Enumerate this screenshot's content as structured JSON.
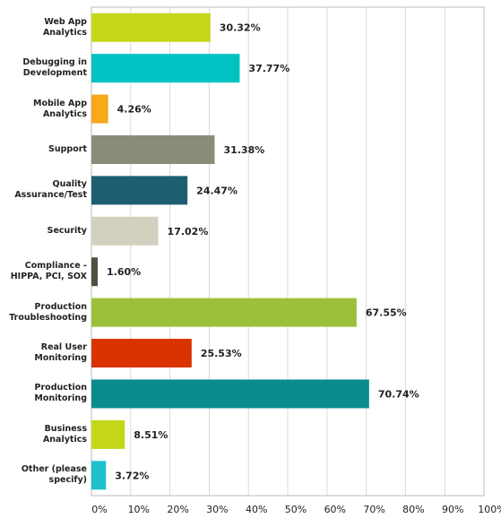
{
  "chart_data": {
    "type": "bar",
    "orientation": "horizontal",
    "categories": [
      "Web App Analytics",
      "Debugging in Development",
      "Mobile App Analytics",
      "Support",
      "Quality Assurance/Test",
      "Security",
      "Compliance - HIPPA, PCI, SOX",
      "Production Troubleshooting",
      "Real User Monitoring",
      "Production Monitoring",
      "Business Analytics",
      "Other (please specify)"
    ],
    "values": [
      30.32,
      37.77,
      4.26,
      31.38,
      24.47,
      17.02,
      1.6,
      67.55,
      25.53,
      70.74,
      8.51,
      3.72
    ],
    "value_labels": [
      "30.32%",
      "37.77%",
      "4.26%",
      "31.38%",
      "24.47%",
      "17.02%",
      "1.60%",
      "67.55%",
      "25.53%",
      "70.74%",
      "8.51%",
      "3.72%"
    ],
    "colors": [
      "#c5d619",
      "#00c2c2",
      "#f7a81b",
      "#8a8c7a",
      "#1d5f70",
      "#d2d1c0",
      "#4b5340",
      "#9dc03c",
      "#d93300",
      "#0a8c8c",
      "#c5d619",
      "#1ec2cc"
    ],
    "xlim": [
      0,
      100
    ],
    "xticks": [
      {
        "value": 0,
        "label": "0%"
      },
      {
        "value": 10,
        "label": "10%"
      },
      {
        "value": 20,
        "label": "20%"
      },
      {
        "value": 30,
        "label": "30%"
      },
      {
        "value": 40,
        "label": "40%"
      },
      {
        "value": 50,
        "label": "50%"
      },
      {
        "value": 60,
        "label": "60%"
      },
      {
        "value": 70,
        "label": "70%"
      },
      {
        "value": 80,
        "label": "80%"
      },
      {
        "value": 90,
        "label": "90%"
      },
      {
        "value": 100,
        "label": "100%"
      }
    ],
    "grid": true
  }
}
